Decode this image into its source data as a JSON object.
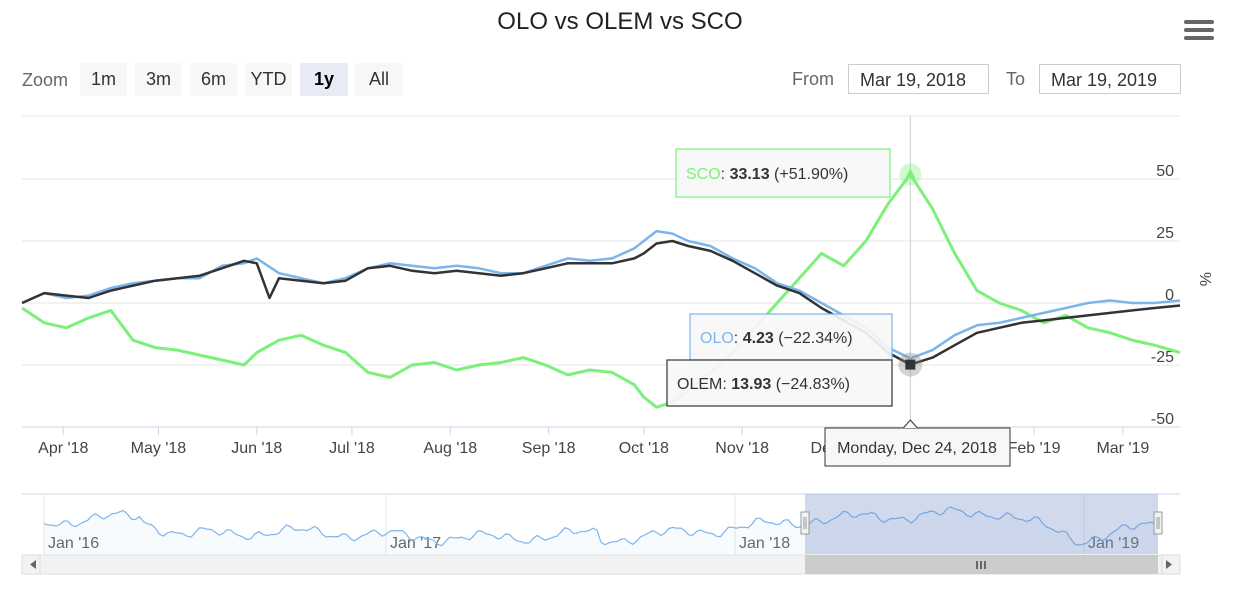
{
  "title": "OLO vs OLEM vs SCO",
  "menu_icon": "hamburger-menu-icon",
  "zoom": {
    "label": "Zoom",
    "buttons": [
      "1m",
      "3m",
      "6m",
      "YTD",
      "1y",
      "All"
    ],
    "selected": "1y"
  },
  "range": {
    "from_label": "From",
    "from_value": "Mar 19, 2018",
    "to_label": "To",
    "to_value": "Mar 19, 2019"
  },
  "navigator": {
    "labels": [
      "Jan '16",
      "Jan '17",
      "Jan '18",
      "Jan '19"
    ],
    "selection_start": "Mar 19, 2018",
    "selection_end": "Mar 19, 2019",
    "scroll_icon": "scrollbar-grip-icon"
  },
  "tooltip": {
    "date": "Monday, Dec 24, 2018",
    "entries": [
      {
        "series": "SCO",
        "value": "33.13",
        "change": "(+51.90%)"
      },
      {
        "series": "OLO",
        "value": "4.23",
        "change": "(−22.34%)"
      },
      {
        "series": "OLEM",
        "value": "13.93",
        "change": "(−24.83%)"
      }
    ]
  },
  "chart_data": {
    "type": "line",
    "title": "OLO vs OLEM vs SCO",
    "xlabel": "",
    "ylabel": "%",
    "x_tick_labels": [
      "Apr '18",
      "May '18",
      "Jun '18",
      "Jul '18",
      "Aug '18",
      "Sep '18",
      "Oct '18",
      "Nov '18",
      "Dec '18",
      "Jan '19",
      "Feb '19",
      "Mar '19"
    ],
    "y_ticks": [
      50,
      25,
      0,
      -25,
      -50
    ],
    "ylim": [
      -50,
      75
    ],
    "xlim": [
      "2018-03-19",
      "2019-03-19"
    ],
    "grid": true,
    "colors": {
      "SCO": "#7cf07a",
      "OLO": "#7cb5ec",
      "OLEM": "#333333"
    },
    "series": [
      {
        "name": "OLO",
        "points": [
          [
            "2018-03-19",
            0
          ],
          [
            "2018-03-26",
            4
          ],
          [
            "2018-04-02",
            2
          ],
          [
            "2018-04-09",
            3
          ],
          [
            "2018-04-16",
            6
          ],
          [
            "2018-04-23",
            8
          ],
          [
            "2018-04-30",
            9
          ],
          [
            "2018-05-07",
            10
          ],
          [
            "2018-05-14",
            10
          ],
          [
            "2018-05-21",
            15
          ],
          [
            "2018-05-28",
            16
          ],
          [
            "2018-06-01",
            18
          ],
          [
            "2018-06-08",
            12
          ],
          [
            "2018-06-15",
            10
          ],
          [
            "2018-06-22",
            8
          ],
          [
            "2018-06-29",
            10
          ],
          [
            "2018-07-06",
            14
          ],
          [
            "2018-07-13",
            16
          ],
          [
            "2018-07-20",
            15
          ],
          [
            "2018-07-27",
            14
          ],
          [
            "2018-08-03",
            15
          ],
          [
            "2018-08-10",
            14
          ],
          [
            "2018-08-17",
            12
          ],
          [
            "2018-08-24",
            12
          ],
          [
            "2018-08-31",
            15
          ],
          [
            "2018-09-07",
            18
          ],
          [
            "2018-09-14",
            17
          ],
          [
            "2018-09-21",
            18
          ],
          [
            "2018-09-28",
            22
          ],
          [
            "2018-10-01",
            25
          ],
          [
            "2018-10-05",
            29
          ],
          [
            "2018-10-10",
            28
          ],
          [
            "2018-10-15",
            25
          ],
          [
            "2018-10-22",
            23
          ],
          [
            "2018-10-29",
            18
          ],
          [
            "2018-11-05",
            14
          ],
          [
            "2018-11-12",
            8
          ],
          [
            "2018-11-19",
            5
          ],
          [
            "2018-11-26",
            0
          ],
          [
            "2018-12-03",
            -5
          ],
          [
            "2018-12-10",
            -10
          ],
          [
            "2018-12-17",
            -18
          ],
          [
            "2018-12-24",
            -22.34
          ],
          [
            "2018-12-31",
            -19
          ],
          [
            "2019-01-07",
            -13
          ],
          [
            "2019-01-14",
            -9
          ],
          [
            "2019-01-21",
            -8
          ],
          [
            "2019-01-28",
            -6
          ],
          [
            "2019-02-04",
            -4
          ],
          [
            "2019-02-11",
            -2
          ],
          [
            "2019-02-18",
            0
          ],
          [
            "2019-02-25",
            1
          ],
          [
            "2019-03-04",
            0
          ],
          [
            "2019-03-11",
            0
          ],
          [
            "2019-03-19",
            1
          ]
        ]
      },
      {
        "name": "OLEM",
        "points": [
          [
            "2018-03-19",
            0
          ],
          [
            "2018-03-26",
            4
          ],
          [
            "2018-04-02",
            3
          ],
          [
            "2018-04-09",
            2
          ],
          [
            "2018-04-16",
            5
          ],
          [
            "2018-04-23",
            7
          ],
          [
            "2018-04-30",
            9
          ],
          [
            "2018-05-07",
            10
          ],
          [
            "2018-05-14",
            11
          ],
          [
            "2018-05-21",
            14
          ],
          [
            "2018-05-28",
            17
          ],
          [
            "2018-06-01",
            16
          ],
          [
            "2018-06-05",
            2
          ],
          [
            "2018-06-08",
            10
          ],
          [
            "2018-06-15",
            9
          ],
          [
            "2018-06-22",
            8
          ],
          [
            "2018-06-29",
            9
          ],
          [
            "2018-07-06",
            14
          ],
          [
            "2018-07-13",
            15
          ],
          [
            "2018-07-20",
            13
          ],
          [
            "2018-07-27",
            12
          ],
          [
            "2018-08-03",
            13
          ],
          [
            "2018-08-10",
            12
          ],
          [
            "2018-08-17",
            11
          ],
          [
            "2018-08-24",
            12
          ],
          [
            "2018-08-31",
            14
          ],
          [
            "2018-09-07",
            16
          ],
          [
            "2018-09-14",
            16
          ],
          [
            "2018-09-21",
            16
          ],
          [
            "2018-09-28",
            18
          ],
          [
            "2018-10-01",
            20
          ],
          [
            "2018-10-05",
            24
          ],
          [
            "2018-10-10",
            25
          ],
          [
            "2018-10-15",
            23
          ],
          [
            "2018-10-22",
            21
          ],
          [
            "2018-10-29",
            17
          ],
          [
            "2018-11-05",
            12
          ],
          [
            "2018-11-12",
            7
          ],
          [
            "2018-11-19",
            4
          ],
          [
            "2018-11-26",
            -2
          ],
          [
            "2018-12-03",
            -7
          ],
          [
            "2018-12-10",
            -12
          ],
          [
            "2018-12-17",
            -20
          ],
          [
            "2018-12-24",
            -24.83
          ],
          [
            "2018-12-31",
            -22
          ],
          [
            "2019-01-07",
            -17
          ],
          [
            "2019-01-14",
            -12
          ],
          [
            "2019-01-21",
            -10
          ],
          [
            "2019-01-28",
            -8
          ],
          [
            "2019-02-04",
            -7
          ],
          [
            "2019-02-11",
            -6
          ],
          [
            "2019-02-18",
            -5
          ],
          [
            "2019-02-25",
            -4
          ],
          [
            "2019-03-04",
            -3
          ],
          [
            "2019-03-11",
            -2
          ],
          [
            "2019-03-19",
            -1
          ]
        ]
      },
      {
        "name": "SCO",
        "points": [
          [
            "2018-03-19",
            -2
          ],
          [
            "2018-03-26",
            -8
          ],
          [
            "2018-04-02",
            -10
          ],
          [
            "2018-04-09",
            -6
          ],
          [
            "2018-04-16",
            -3
          ],
          [
            "2018-04-23",
            -15
          ],
          [
            "2018-04-30",
            -18
          ],
          [
            "2018-05-07",
            -19
          ],
          [
            "2018-05-14",
            -21
          ],
          [
            "2018-05-21",
            -23
          ],
          [
            "2018-05-28",
            -25
          ],
          [
            "2018-06-01",
            -20
          ],
          [
            "2018-06-08",
            -15
          ],
          [
            "2018-06-15",
            -13
          ],
          [
            "2018-06-22",
            -17
          ],
          [
            "2018-06-29",
            -20
          ],
          [
            "2018-07-06",
            -28
          ],
          [
            "2018-07-13",
            -30
          ],
          [
            "2018-07-20",
            -25
          ],
          [
            "2018-07-27",
            -24
          ],
          [
            "2018-08-03",
            -27
          ],
          [
            "2018-08-10",
            -25
          ],
          [
            "2018-08-17",
            -24
          ],
          [
            "2018-08-24",
            -22
          ],
          [
            "2018-08-31",
            -25
          ],
          [
            "2018-09-07",
            -29
          ],
          [
            "2018-09-14",
            -27
          ],
          [
            "2018-09-21",
            -28
          ],
          [
            "2018-09-28",
            -33
          ],
          [
            "2018-10-01",
            -38
          ],
          [
            "2018-10-05",
            -42
          ],
          [
            "2018-10-10",
            -40
          ],
          [
            "2018-10-15",
            -35
          ],
          [
            "2018-10-22",
            -28
          ],
          [
            "2018-10-29",
            -20
          ],
          [
            "2018-11-05",
            -10
          ],
          [
            "2018-11-12",
            0
          ],
          [
            "2018-11-19",
            10
          ],
          [
            "2018-11-26",
            20
          ],
          [
            "2018-12-03",
            15
          ],
          [
            "2018-12-10",
            25
          ],
          [
            "2018-12-17",
            40
          ],
          [
            "2018-12-24",
            51.9
          ],
          [
            "2018-12-31",
            38
          ],
          [
            "2019-01-07",
            20
          ],
          [
            "2019-01-14",
            5
          ],
          [
            "2019-01-21",
            0
          ],
          [
            "2019-01-28",
            -3
          ],
          [
            "2019-02-04",
            -8
          ],
          [
            "2019-02-11",
            -5
          ],
          [
            "2019-02-18",
            -10
          ],
          [
            "2019-02-25",
            -12
          ],
          [
            "2019-03-04",
            -15
          ],
          [
            "2019-03-11",
            -17
          ],
          [
            "2019-03-19",
            -20
          ]
        ]
      }
    ]
  }
}
